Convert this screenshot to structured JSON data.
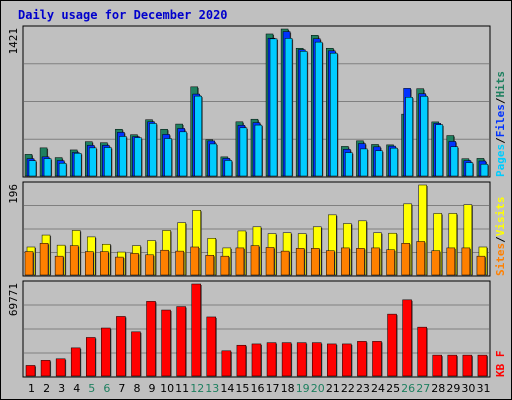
{
  "title": "Daily usage for December 2020",
  "colors": {
    "background": "#c0c0c0",
    "title": "#0000cc",
    "pages": "#00ccff",
    "files": "#0033ff",
    "hits": "#1f8060",
    "sites": "#ff8000",
    "visits": "#ffff00",
    "kbytes": "#ff0000",
    "weekend_label": "#1f8060",
    "grid": "#808080"
  },
  "chart_data": [
    {
      "type": "bar",
      "name": "hits-files-pages",
      "ymax_label": "1421",
      "ylim": [
        0,
        1421
      ],
      "grid": true,
      "legend": [
        {
          "label": "Pages",
          "color": "#00ccff"
        },
        {
          "label": "Files",
          "color": "#0033ff"
        },
        {
          "label": "Hits",
          "color": "#1f8060"
        }
      ],
      "categories": [
        "1",
        "2",
        "3",
        "4",
        "5",
        "6",
        "7",
        "8",
        "9",
        "10",
        "11",
        "12",
        "13",
        "14",
        "15",
        "16",
        "17",
        "18",
        "19",
        "20",
        "21",
        "22",
        "23",
        "24",
        "25",
        "26",
        "27",
        "28",
        "29",
        "30",
        "31"
      ],
      "series": [
        {
          "name": "Hits",
          "values": [
            209,
            272,
            178,
            252,
            332,
            322,
            452,
            399,
            544,
            452,
            502,
            862,
            351,
            185,
            524,
            549,
            1373,
            1421,
            1235,
            1360,
            1235,
            286,
            340,
            305,
            301,
            598,
            844,
            523,
            391,
            167,
            170
          ]
        },
        {
          "name": "Files",
          "values": [
            168,
            185,
            149,
            227,
            296,
            296,
            422,
            380,
            524,
            402,
            460,
            792,
            339,
            170,
            490,
            516,
            1332,
            1396,
            1221,
            1327,
            1210,
            258,
            314,
            282,
            289,
            847,
            796,
            509,
            334,
            149,
            145
          ]
        },
        {
          "name": "Pages",
          "values": [
            148,
            168,
            123,
            219,
            272,
            275,
            382,
            370,
            508,
            362,
            427,
            772,
            310,
            150,
            466,
            492,
            1326,
            1330,
            1205,
            1294,
            1187,
            226,
            262,
            244,
            269,
            761,
            770,
            496,
            283,
            129,
            114
          ]
        }
      ]
    },
    {
      "type": "bar",
      "name": "visits-sites",
      "ymax_label": "196",
      "ylim": [
        0,
        196
      ],
      "grid": true,
      "legend": [
        {
          "label": "Sites",
          "color": "#ff8000"
        },
        {
          "label": "Visits",
          "color": "#ffff00"
        }
      ],
      "categories": [
        "1",
        "2",
        "3",
        "4",
        "5",
        "6",
        "7",
        "8",
        "9",
        "10",
        "11",
        "12",
        "13",
        "14",
        "15",
        "16",
        "17",
        "18",
        "19",
        "20",
        "21",
        "22",
        "23",
        "24",
        "25",
        "26",
        "27",
        "28",
        "29",
        "30",
        "31"
      ],
      "series": [
        {
          "name": "Visits",
          "values": [
            61,
            87,
            65,
            97,
            83,
            67,
            50,
            64,
            75,
            97,
            114,
            141,
            80,
            59,
            96,
            105,
            90,
            92,
            90,
            105,
            131,
            112,
            118,
            92,
            91,
            155,
            196,
            134,
            134,
            153,
            61
          ]
        },
        {
          "name": "Sites",
          "values": [
            51,
            69,
            41,
            64,
            51,
            51,
            39,
            47,
            44,
            54,
            52,
            61,
            43,
            41,
            59,
            64,
            60,
            52,
            58,
            58,
            53,
            59,
            58,
            59,
            55,
            69,
            73,
            53,
            59,
            59,
            41
          ]
        }
      ]
    },
    {
      "type": "bar",
      "name": "kbytes",
      "ymax_label": "69771",
      "ylim": [
        0,
        69771
      ],
      "grid": true,
      "legend": [
        {
          "label": "KBytes",
          "color": "#ff0000"
        }
      ],
      "categories": [
        "1",
        "2",
        "3",
        "4",
        "5",
        "6",
        "7",
        "8",
        "9",
        "10",
        "11",
        "12",
        "13",
        "14",
        "15",
        "16",
        "17",
        "18",
        "19",
        "20",
        "21",
        "22",
        "23",
        "24",
        "25",
        "26",
        "27",
        "28",
        "29",
        "30",
        "31"
      ],
      "series": [
        {
          "name": "KBytes",
          "values": [
            8000,
            11870,
            13045,
            21335,
            29220,
            36395,
            45170,
            33505,
            56600,
            50035,
            52650,
            69771,
            44780,
            19105,
            23345,
            24325,
            25300,
            25300,
            25300,
            25300,
            24325,
            24325,
            26270,
            26270,
            46925,
            57770,
            37050,
            15835,
            15835,
            15835,
            15835
          ]
        }
      ]
    }
  ],
  "axis_labels": {
    "days": [
      "1",
      "2",
      "3",
      "4",
      "5",
      "6",
      "7",
      "8",
      "9",
      "10",
      "11",
      "12",
      "13",
      "14",
      "15",
      "16",
      "17",
      "18",
      "19",
      "20",
      "21",
      "22",
      "23",
      "24",
      "25",
      "26",
      "27",
      "28",
      "29",
      "30",
      "31"
    ],
    "weekend_days": [
      "5",
      "6",
      "12",
      "13",
      "19",
      "20",
      "26",
      "27"
    ]
  },
  "legends": {
    "top": [
      {
        "label": "Pages",
        "color": "#00ccff"
      },
      {
        "label": "/",
        "color": "#000000"
      },
      {
        "label": "Files",
        "color": "#0033ff"
      },
      {
        "label": "/",
        "color": "#000000"
      },
      {
        "label": "Hits",
        "color": "#1f8060"
      }
    ],
    "middle": [
      {
        "label": "Sites",
        "color": "#ff8000"
      },
      {
        "label": "/",
        "color": "#000000"
      },
      {
        "label": "Visits",
        "color": "#ffff00"
      }
    ],
    "bottom": [
      {
        "label": "KB F",
        "color": "#ff0000"
      }
    ]
  }
}
